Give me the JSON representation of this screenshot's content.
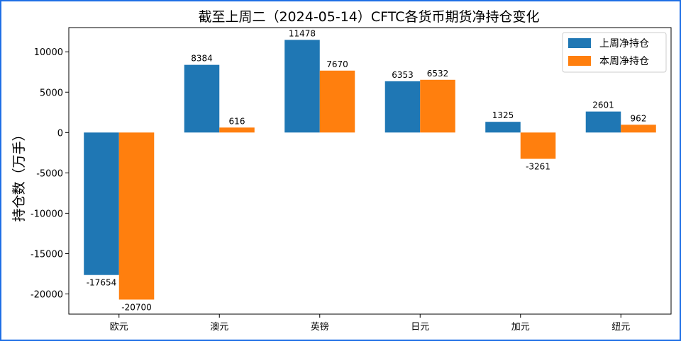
{
  "chart_data": {
    "type": "bar",
    "title": "截至上周二（2024-05-14）CFTC各货币期货净持仓变化",
    "xlabel": "",
    "ylabel": "持仓数（万手）",
    "categories": [
      "欧元",
      "澳元",
      "英镑",
      "日元",
      "加元",
      "纽元"
    ],
    "series": [
      {
        "name": "上周净持仓",
        "values": [
          -17654,
          8384,
          11478,
          6353,
          1325,
          2601
        ],
        "color": "#1f77b4"
      },
      {
        "name": "本周净持仓",
        "values": [
          -20700,
          616,
          7670,
          6532,
          -3261,
          962
        ],
        "color": "#ff7f0e"
      }
    ],
    "ylim": [
      -22500,
      13000
    ],
    "yticks": [
      -20000,
      -15000,
      -10000,
      -5000,
      0,
      5000,
      10000
    ],
    "grid": false,
    "legend": "top-right"
  },
  "frame_color": "#1f6fe5"
}
